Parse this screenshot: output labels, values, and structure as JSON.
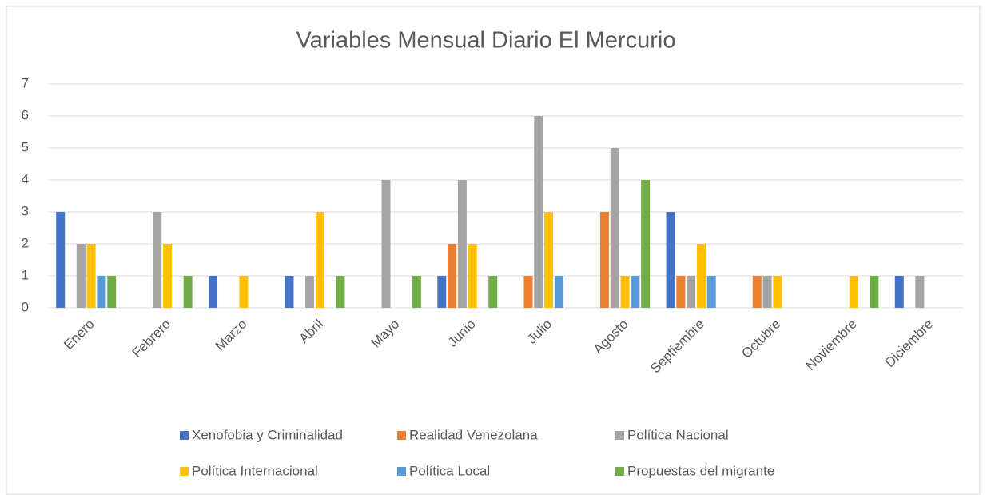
{
  "chart_data": {
    "type": "bar",
    "title": "Variables Mensual Diario El Mercurio",
    "categories": [
      "Enero",
      "Febrero",
      "Marzo",
      "Abril",
      "Mayo",
      "Junio",
      "Julio",
      "Agosto",
      "Septiembre",
      "Octubre",
      "Noviembre",
      "Diciembre"
    ],
    "series": [
      {
        "name": "Xenofobia y Criminalidad",
        "color": "#4472c4",
        "values": [
          3,
          0,
          1,
          1,
          0,
          1,
          0,
          0,
          3,
          0,
          0,
          1
        ]
      },
      {
        "name": "Realidad Venezolana",
        "color": "#ed7d31",
        "values": [
          0,
          0,
          0,
          0,
          0,
          2,
          1,
          3,
          1,
          1,
          0,
          0
        ]
      },
      {
        "name": "Política Nacional",
        "color": "#a5a5a5",
        "values": [
          2,
          3,
          0,
          1,
          4,
          4,
          6,
          5,
          1,
          1,
          0,
          1
        ]
      },
      {
        "name": "Política Internacional",
        "color": "#ffc000",
        "values": [
          2,
          2,
          1,
          3,
          0,
          2,
          3,
          1,
          2,
          1,
          1,
          0
        ]
      },
      {
        "name": "Política Local",
        "color": "#5b9bd5",
        "values": [
          1,
          0,
          0,
          0,
          0,
          0,
          1,
          1,
          1,
          0,
          0,
          0
        ]
      },
      {
        "name": "Propuestas del migrante",
        "color": "#70ad47",
        "values": [
          1,
          1,
          0,
          1,
          1,
          1,
          0,
          4,
          0,
          0,
          1,
          0
        ]
      }
    ],
    "ylim": [
      0,
      7
    ],
    "yticks": [
      0,
      1,
      2,
      3,
      4,
      5,
      6,
      7
    ],
    "grid": true,
    "legend": "bottom"
  }
}
